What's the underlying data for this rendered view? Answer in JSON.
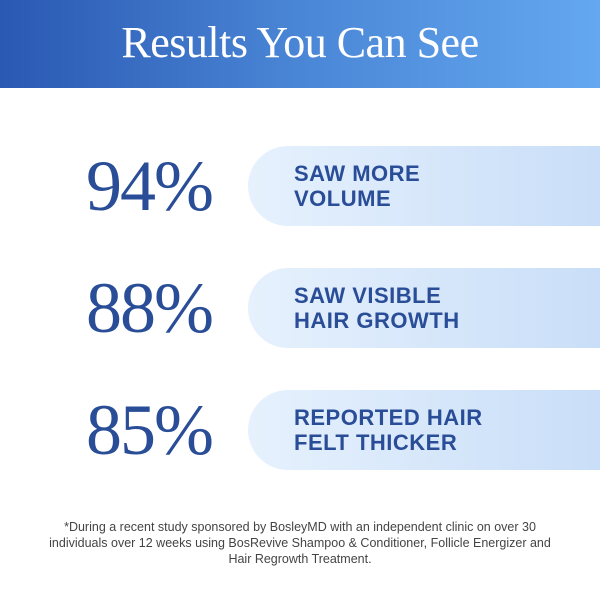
{
  "header": {
    "title": "Results You Can See"
  },
  "stats": [
    {
      "value": "94%",
      "label": "SAW MORE\nVOLUME"
    },
    {
      "value": "88%",
      "label": "SAW VISIBLE\nHAIR GROWTH"
    },
    {
      "value": "85%",
      "label": "REPORTED HAIR\nFELT THICKER"
    }
  ],
  "footnote": "*During a recent study sponsored by BosleyMD with an independent clinic on over 30 individuals over 12 weeks using BosRevive Shampoo & Conditioner, Follicle Energizer and Hair Regrowth Treatment.",
  "colors": {
    "accent": "#2a4d98",
    "header_start": "#2a58b2",
    "header_end": "#64a8f0"
  }
}
